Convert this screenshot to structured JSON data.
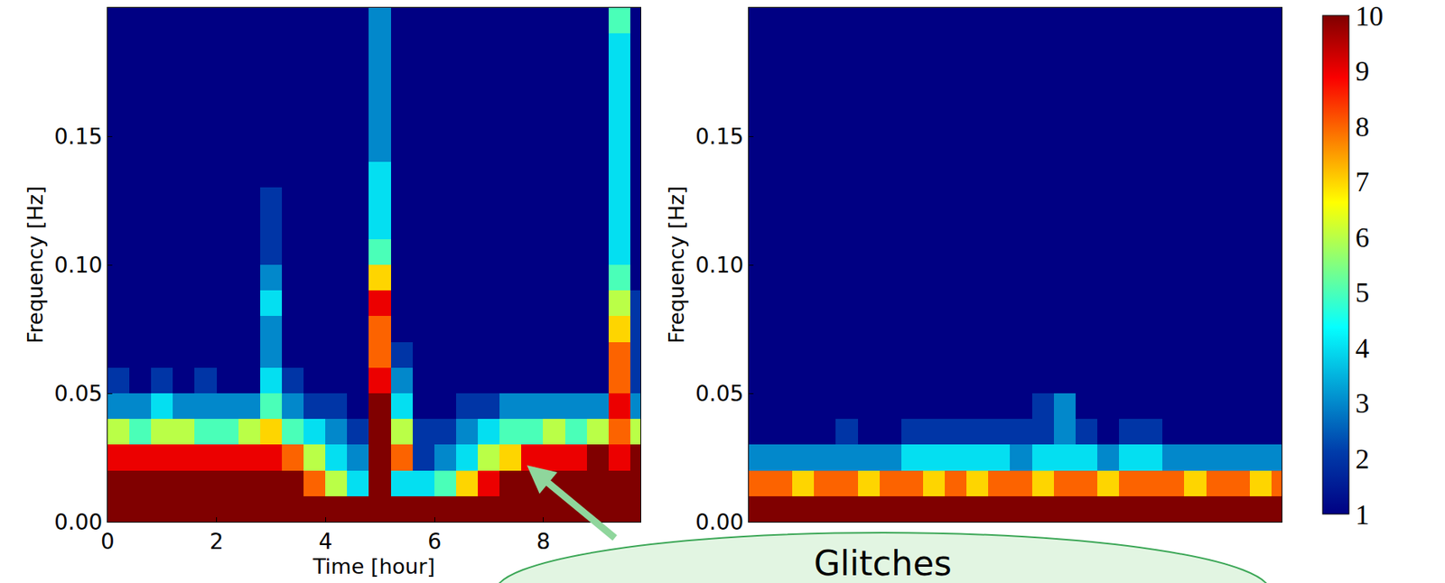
{
  "chart_data": [
    {
      "type": "heatmap",
      "xlabel": "Time [hour]",
      "ylabel": "Frequency [Hz]",
      "xlim": [
        0,
        9.78
      ],
      "ylim": [
        0,
        0.2
      ],
      "xticks": [
        0,
        2,
        4,
        6,
        8
      ],
      "yticks": [
        {
          "value": 0,
          "label": "0.00"
        },
        0.05,
        {
          "value": 0.1,
          "label": "0.10"
        },
        0.15
      ],
      "annotations": [
        "Glitches"
      ],
      "x": [
        0.2,
        0.6,
        1.0,
        1.4,
        1.8,
        2.2,
        2.6,
        3.0,
        3.4,
        3.8,
        4.2,
        4.6,
        5.0,
        5.4,
        5.8,
        6.2,
        6.6,
        7.0,
        7.4,
        7.8,
        8.2,
        8.6,
        9.0,
        9.4,
        9.8
      ],
      "y": [
        0.005,
        0.015,
        0.025,
        0.035,
        0.045,
        0.055,
        0.065,
        0.075,
        0.085,
        0.095,
        0.105,
        0.115,
        0.125,
        0.135,
        0.145,
        0.155,
        0.165,
        0.175,
        0.185,
        0.195
      ],
      "z": [
        [
          10,
          10,
          10,
          10,
          10,
          10,
          10,
          10,
          10,
          10,
          10,
          10,
          10,
          10,
          10,
          10,
          10,
          10,
          10,
          10,
          10,
          10,
          10,
          10,
          10
        ],
        [
          10,
          10,
          10,
          10,
          10,
          10,
          10,
          10,
          10,
          8,
          6,
          4,
          10,
          4,
          4,
          5,
          7,
          9,
          10,
          10,
          10,
          10,
          10,
          10,
          10
        ],
        [
          9,
          9,
          9,
          9,
          9,
          9,
          9,
          9,
          8,
          6,
          4,
          3,
          10,
          8,
          2,
          3,
          4,
          6,
          7,
          9,
          9,
          9,
          10,
          9,
          10
        ],
        [
          6,
          5,
          6,
          6,
          5,
          5,
          6,
          7,
          5,
          4,
          3,
          2,
          10,
          6,
          2,
          2,
          3,
          4,
          5,
          5,
          6,
          5,
          6,
          8,
          6
        ],
        [
          3,
          3,
          4,
          3,
          3,
          3,
          3,
          5,
          3,
          2,
          2,
          1,
          10,
          4,
          1,
          1,
          2,
          2,
          3,
          3,
          3,
          3,
          3,
          9,
          3
        ],
        [
          2,
          1,
          2,
          1,
          2,
          1,
          1,
          4,
          2,
          1,
          1,
          1,
          9,
          3,
          1,
          1,
          1,
          1,
          1,
          1,
          1,
          1,
          1,
          8,
          2
        ],
        [
          1,
          1,
          1,
          1,
          1,
          1,
          1,
          3,
          1,
          1,
          1,
          1,
          8,
          2,
          1,
          1,
          1,
          1,
          1,
          1,
          1,
          1,
          1,
          8,
          2
        ],
        [
          1,
          1,
          1,
          1,
          1,
          1,
          1,
          3,
          1,
          1,
          1,
          1,
          8,
          1,
          1,
          1,
          1,
          1,
          1,
          1,
          1,
          1,
          1,
          7,
          2
        ],
        [
          1,
          1,
          1,
          1,
          1,
          1,
          1,
          4,
          1,
          1,
          1,
          1,
          9,
          1,
          1,
          1,
          1,
          1,
          1,
          1,
          1,
          1,
          1,
          6,
          2
        ],
        [
          1,
          1,
          1,
          1,
          1,
          1,
          1,
          3,
          1,
          1,
          1,
          1,
          7,
          1,
          1,
          1,
          1,
          1,
          1,
          1,
          1,
          1,
          1,
          5,
          1
        ],
        [
          1,
          1,
          1,
          1,
          1,
          1,
          1,
          2,
          1,
          1,
          1,
          1,
          5,
          1,
          1,
          1,
          1,
          1,
          1,
          1,
          1,
          1,
          1,
          4,
          1
        ],
        [
          1,
          1,
          1,
          1,
          1,
          1,
          1,
          2,
          1,
          1,
          1,
          1,
          4,
          1,
          1,
          1,
          1,
          1,
          1,
          1,
          1,
          1,
          1,
          4,
          1
        ],
        [
          1,
          1,
          1,
          1,
          1,
          1,
          1,
          2,
          1,
          1,
          1,
          1,
          4,
          1,
          1,
          1,
          1,
          1,
          1,
          1,
          1,
          1,
          1,
          4,
          1
        ],
        [
          1,
          1,
          1,
          1,
          1,
          1,
          1,
          1,
          1,
          1,
          1,
          1,
          4,
          1,
          1,
          1,
          1,
          1,
          1,
          1,
          1,
          1,
          1,
          4,
          1
        ],
        [
          1,
          1,
          1,
          1,
          1,
          1,
          1,
          1,
          1,
          1,
          1,
          1,
          3,
          1,
          1,
          1,
          1,
          1,
          1,
          1,
          1,
          1,
          1,
          4,
          1
        ],
        [
          1,
          1,
          1,
          1,
          1,
          1,
          1,
          1,
          1,
          1,
          1,
          1,
          3,
          1,
          1,
          1,
          1,
          1,
          1,
          1,
          1,
          1,
          1,
          4,
          1
        ],
        [
          1,
          1,
          1,
          1,
          1,
          1,
          1,
          1,
          1,
          1,
          1,
          1,
          3,
          1,
          1,
          1,
          1,
          1,
          1,
          1,
          1,
          1,
          1,
          4,
          1
        ],
        [
          1,
          1,
          1,
          1,
          1,
          1,
          1,
          1,
          1,
          1,
          1,
          1,
          3,
          1,
          1,
          1,
          1,
          1,
          1,
          1,
          1,
          1,
          1,
          4,
          1
        ],
        [
          1,
          1,
          1,
          1,
          1,
          1,
          1,
          1,
          1,
          1,
          1,
          1,
          3,
          1,
          1,
          1,
          1,
          1,
          1,
          1,
          1,
          1,
          1,
          4,
          1
        ],
        [
          1,
          1,
          1,
          1,
          1,
          1,
          1,
          1,
          1,
          1,
          1,
          1,
          3,
          1,
          1,
          1,
          1,
          1,
          1,
          1,
          1,
          1,
          1,
          5,
          1
        ]
      ]
    },
    {
      "type": "heatmap",
      "ylabel": "Frequency [Hz]",
      "xlim": [
        0,
        9.78
      ],
      "ylim": [
        0,
        0.2
      ],
      "yticks": [
        {
          "value": 0,
          "label": "0.00"
        },
        0.05,
        {
          "value": 0.1,
          "label": "0.10"
        },
        0.15
      ],
      "tick_labels": "y",
      "colorbar": {
        "range": [
          1,
          10
        ],
        "ticks": [
          1,
          2,
          3,
          4,
          5,
          6,
          7,
          8,
          9,
          10
        ]
      },
      "x": [
        0.2,
        0.6,
        1.0,
        1.4,
        1.8,
        2.2,
        2.6,
        3.0,
        3.4,
        3.8,
        4.2,
        4.6,
        5.0,
        5.4,
        5.8,
        6.2,
        6.6,
        7.0,
        7.4,
        7.8,
        8.2,
        8.6,
        9.0,
        9.4,
        9.8
      ],
      "y": [
        0.005,
        0.015,
        0.025,
        0.035,
        0.045,
        0.055,
        0.065,
        0.075,
        0.085,
        0.095,
        0.105,
        0.115,
        0.125,
        0.135,
        0.145,
        0.155,
        0.165,
        0.175,
        0.185,
        0.195
      ],
      "z": [
        [
          10,
          10,
          10,
          10,
          10,
          10,
          10,
          10,
          10,
          10,
          10,
          10,
          10,
          10,
          10,
          10,
          10,
          10,
          10,
          10,
          10,
          10,
          10,
          10,
          10
        ],
        [
          8,
          8,
          7,
          8,
          8,
          7,
          8,
          8,
          7,
          8,
          7,
          8,
          8,
          7,
          8,
          8,
          7,
          8,
          8,
          8,
          7,
          8,
          8,
          7,
          8
        ],
        [
          3,
          3,
          3,
          3,
          3,
          3,
          3,
          4,
          4,
          4,
          4,
          4,
          3,
          4,
          4,
          4,
          3,
          4,
          4,
          3,
          3,
          3,
          3,
          3,
          3
        ],
        [
          1,
          1,
          1,
          1,
          2,
          1,
          1,
          2,
          2,
          2,
          2,
          2,
          2,
          2,
          3,
          2,
          1,
          2,
          2,
          1,
          1,
          1,
          1,
          1,
          1
        ],
        [
          1,
          1,
          1,
          1,
          1,
          1,
          1,
          1,
          1,
          1,
          1,
          1,
          1,
          2,
          3,
          1,
          1,
          1,
          1,
          1,
          1,
          1,
          1,
          1,
          1
        ],
        [
          1,
          1,
          1,
          1,
          1,
          1,
          1,
          1,
          1,
          1,
          1,
          1,
          1,
          1,
          1,
          1,
          1,
          1,
          1,
          1,
          1,
          1,
          1,
          1,
          1
        ],
        [
          1,
          1,
          1,
          1,
          1,
          1,
          1,
          1,
          1,
          1,
          1,
          1,
          1,
          1,
          1,
          1,
          1,
          1,
          1,
          1,
          1,
          1,
          1,
          1,
          1
        ],
        [
          1,
          1,
          1,
          1,
          1,
          1,
          1,
          1,
          1,
          1,
          1,
          1,
          1,
          1,
          1,
          1,
          1,
          1,
          1,
          1,
          1,
          1,
          1,
          1,
          1
        ],
        [
          1,
          1,
          1,
          1,
          1,
          1,
          1,
          1,
          1,
          1,
          1,
          1,
          1,
          1,
          1,
          1,
          1,
          1,
          1,
          1,
          1,
          1,
          1,
          1,
          1
        ],
        [
          1,
          1,
          1,
          1,
          1,
          1,
          1,
          1,
          1,
          1,
          1,
          1,
          1,
          1,
          1,
          1,
          1,
          1,
          1,
          1,
          1,
          1,
          1,
          1,
          1
        ],
        [
          1,
          1,
          1,
          1,
          1,
          1,
          1,
          1,
          1,
          1,
          1,
          1,
          1,
          1,
          1,
          1,
          1,
          1,
          1,
          1,
          1,
          1,
          1,
          1,
          1
        ],
        [
          1,
          1,
          1,
          1,
          1,
          1,
          1,
          1,
          1,
          1,
          1,
          1,
          1,
          1,
          1,
          1,
          1,
          1,
          1,
          1,
          1,
          1,
          1,
          1,
          1
        ],
        [
          1,
          1,
          1,
          1,
          1,
          1,
          1,
          1,
          1,
          1,
          1,
          1,
          1,
          1,
          1,
          1,
          1,
          1,
          1,
          1,
          1,
          1,
          1,
          1,
          1
        ],
        [
          1,
          1,
          1,
          1,
          1,
          1,
          1,
          1,
          1,
          1,
          1,
          1,
          1,
          1,
          1,
          1,
          1,
          1,
          1,
          1,
          1,
          1,
          1,
          1,
          1
        ],
        [
          1,
          1,
          1,
          1,
          1,
          1,
          1,
          1,
          1,
          1,
          1,
          1,
          1,
          1,
          1,
          1,
          1,
          1,
          1,
          1,
          1,
          1,
          1,
          1,
          1
        ],
        [
          1,
          1,
          1,
          1,
          1,
          1,
          1,
          1,
          1,
          1,
          1,
          1,
          1,
          1,
          1,
          1,
          1,
          1,
          1,
          1,
          1,
          1,
          1,
          1,
          1
        ],
        [
          1,
          1,
          1,
          1,
          1,
          1,
          1,
          1,
          1,
          1,
          1,
          1,
          1,
          1,
          1,
          1,
          1,
          1,
          1,
          1,
          1,
          1,
          1,
          1,
          1
        ],
        [
          1,
          1,
          1,
          1,
          1,
          1,
          1,
          1,
          1,
          1,
          1,
          1,
          1,
          1,
          1,
          1,
          1,
          1,
          1,
          1,
          1,
          1,
          1,
          1,
          1
        ],
        [
          1,
          1,
          1,
          1,
          1,
          1,
          1,
          1,
          1,
          1,
          1,
          1,
          1,
          1,
          1,
          1,
          1,
          1,
          1,
          1,
          1,
          1,
          1,
          1,
          1
        ],
        [
          1,
          1,
          1,
          1,
          1,
          1,
          1,
          1,
          1,
          1,
          1,
          1,
          1,
          1,
          1,
          1,
          1,
          1,
          1,
          1,
          1,
          1,
          1,
          1,
          1
        ]
      ]
    }
  ]
}
